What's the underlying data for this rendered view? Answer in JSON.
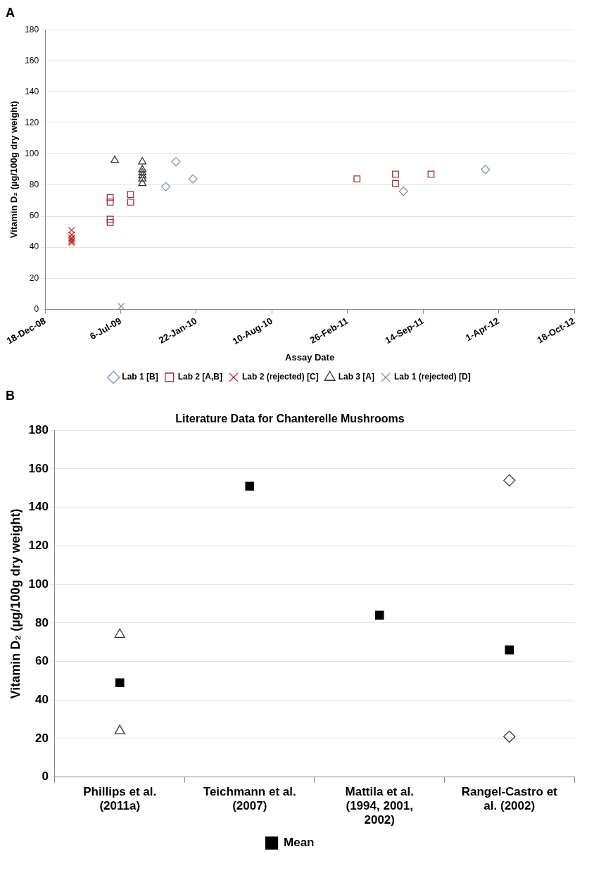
{
  "chart_data": [
    {
      "type": "scatter",
      "annotations": [
        "A"
      ],
      "xlabel": "Assay Date",
      "ylabel": "Vitamin D₂ (µg/100g dry weight)",
      "xlim": [
        "2008-12-18",
        "2012-10-18"
      ],
      "xticks": [
        {
          "value": "2008-12-18",
          "label": "18-Dec-08"
        },
        {
          "value": "2009-07-06",
          "label": "6-Jul-09"
        },
        {
          "value": "2010-01-22",
          "label": "22-Jan-10"
        },
        {
          "value": "2010-08-10",
          "label": "10-Aug-10"
        },
        {
          "value": "2011-02-26",
          "label": "26-Feb-11"
        },
        {
          "value": "2011-09-14",
          "label": "14-Sep-11"
        },
        {
          "value": "2012-04-01",
          "label": "1-Apr-12"
        },
        {
          "value": "2012-10-18",
          "label": "18-Oct-12"
        }
      ],
      "ylim": [
        0,
        180
      ],
      "yticks": [
        0,
        20,
        40,
        60,
        80,
        100,
        120,
        140,
        160,
        180
      ],
      "grid": "y",
      "legend": "bottom",
      "series": [
        {
          "name": "Lab 1 [B]",
          "color": "#7f96b0",
          "marker": "diamond",
          "x": [
            "2009-11-02",
            "2009-11-29",
            "2010-01-13",
            "2011-07-24",
            "2012-02-26"
          ],
          "values": [
            79,
            95,
            84,
            76,
            90
          ]
        },
        {
          "name": "Lab 2 [A,B]",
          "color": "#a0302f",
          "marker": "square",
          "x": [
            "2009-06-08",
            "2009-06-08",
            "2009-06-08",
            "2009-06-08",
            "2009-08-01",
            "2009-08-01",
            "2011-03-23",
            "2011-07-03",
            "2011-07-03",
            "2011-10-05"
          ],
          "values": [
            72,
            69,
            58,
            56,
            74,
            69,
            84,
            87,
            81,
            87
          ]
        },
        {
          "name": "Lab 2 (rejected) [C]",
          "color": "#cc2222",
          "marker": "cross",
          "x": [
            "2009-02-26",
            "2009-02-26",
            "2009-02-26",
            "2009-02-26",
            "2009-02-26",
            "2009-02-26"
          ],
          "values": [
            51,
            48,
            46,
            45,
            44,
            43
          ]
        },
        {
          "name": "Lab 3 [A]",
          "color": "#333333",
          "marker": "triangle",
          "x": [
            "2009-06-20",
            "2009-09-01",
            "2009-09-01",
            "2009-09-01",
            "2009-09-01",
            "2009-09-01",
            "2009-09-01"
          ],
          "values": [
            96,
            95,
            90,
            88,
            86,
            84,
            81
          ]
        },
        {
          "name": "Lab 1 (rejected) [D]",
          "color": "#7890a8",
          "marker": "cross",
          "x": [
            "2009-07-07"
          ],
          "values": [
            2
          ]
        }
      ]
    },
    {
      "type": "scatter",
      "annotations": [
        "B"
      ],
      "title": "Literature Data for Chanterelle Mushrooms",
      "ylabel": "Vitamin D₂ (µg/100g dry weight)",
      "categories": [
        "Phillips et al. (2011a)",
        "Teichmann et al. (2007)",
        "Mattila et al. (1994, 2001, 2002)",
        "Rangel-Castro et al. (2002)"
      ],
      "ylim": [
        0,
        180
      ],
      "yticks": [
        0,
        20,
        40,
        60,
        80,
        100,
        120,
        140,
        160,
        180
      ],
      "grid": "y",
      "legend": "bottom",
      "series": [
        {
          "color": "#333333",
          "marker": "triangle",
          "x": [
            "Phillips et al. (2011a)",
            "Phillips et al. (2011a)"
          ],
          "values": [
            74,
            24
          ]
        },
        {
          "color": "#333333",
          "marker": "diamond",
          "x": [
            "Rangel-Castro et al. (2002)",
            "Rangel-Castro et al. (2002)"
          ],
          "values": [
            154,
            21
          ]
        },
        {
          "name": "Mean",
          "color": "#000000",
          "marker": "square",
          "x": [
            "Phillips et al. (2011a)",
            "Teichmann et al. (2007)",
            "Mattila et al. (1994, 2001, 2002)",
            "Rangel-Castro et al. (2002)"
          ],
          "values": [
            49,
            151,
            84,
            66
          ]
        }
      ]
    }
  ]
}
